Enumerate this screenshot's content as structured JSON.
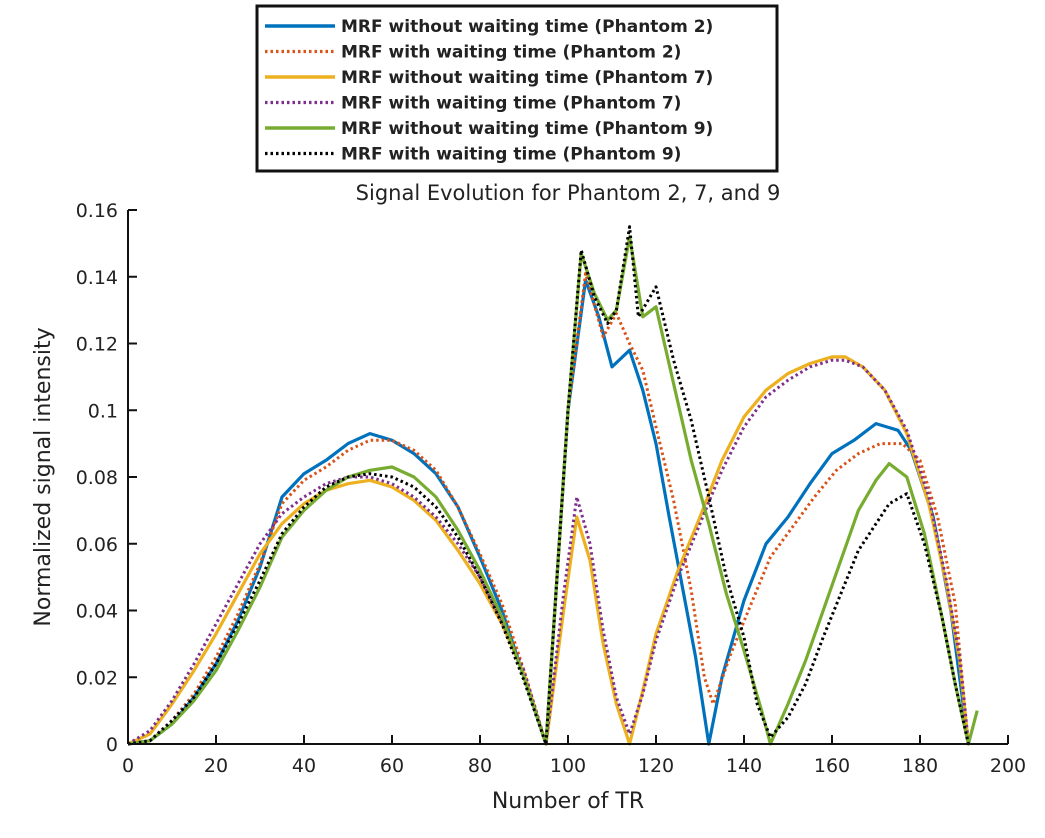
{
  "chart_data": {
    "type": "line",
    "title": "Signal Evolution for Phantom 2, 7, and 9",
    "xlabel": "Number of TR",
    "ylabel": "Normalized signal intensity",
    "xlim": [
      0,
      200
    ],
    "ylim": [
      0,
      0.16
    ],
    "xticks": [
      0,
      20,
      40,
      60,
      80,
      100,
      120,
      140,
      160,
      180,
      200
    ],
    "xtick_labels": [
      "0",
      "20",
      "40",
      "60",
      "80",
      "100",
      "120",
      "140",
      "160",
      "180",
      "200"
    ],
    "yticks": [
      0,
      0.02,
      0.04,
      0.06,
      0.08,
      0.1,
      0.12,
      0.14,
      0.16
    ],
    "ytick_labels": [
      "0",
      "0.02",
      "0.04",
      "0.06",
      "0.08",
      "0.1",
      "0.12",
      "0.14",
      "0.16"
    ],
    "grid": false,
    "legend_position": "top-center",
    "series": [
      {
        "name": "MRF without waiting time (Phantom 2)",
        "color": "#0072BD",
        "dash": "solid",
        "points": [
          [
            0,
            0
          ],
          [
            5,
            0.001
          ],
          [
            10,
            0.006
          ],
          [
            15,
            0.014
          ],
          [
            20,
            0.024
          ],
          [
            25,
            0.037
          ],
          [
            30,
            0.053
          ],
          [
            35,
            0.074
          ],
          [
            40,
            0.081
          ],
          [
            45,
            0.085
          ],
          [
            50,
            0.09
          ],
          [
            55,
            0.093
          ],
          [
            60,
            0.091
          ],
          [
            65,
            0.087
          ],
          [
            70,
            0.081
          ],
          [
            75,
            0.071
          ],
          [
            80,
            0.056
          ],
          [
            85,
            0.04
          ],
          [
            90,
            0.02
          ],
          [
            95,
            0
          ],
          [
            100,
            0.1
          ],
          [
            104,
            0.139
          ],
          [
            107,
            0.128
          ],
          [
            110,
            0.113
          ],
          [
            114,
            0.118
          ],
          [
            117,
            0.106
          ],
          [
            120,
            0.09
          ],
          [
            123,
            0.068
          ],
          [
            126,
            0.047
          ],
          [
            129,
            0.026
          ],
          [
            132,
            0
          ],
          [
            135,
            0.02
          ],
          [
            140,
            0.043
          ],
          [
            145,
            0.06
          ],
          [
            150,
            0.068
          ],
          [
            155,
            0.078
          ],
          [
            160,
            0.087
          ],
          [
            165,
            0.091
          ],
          [
            170,
            0.096
          ],
          [
            175,
            0.094
          ],
          [
            178,
            0.088
          ],
          [
            183,
            0.068
          ],
          [
            187,
            0.04
          ],
          [
            191,
            0
          ]
        ]
      },
      {
        "name": "MRF with waiting time (Phantom 2)",
        "color": "#D95319",
        "dash": "dotted",
        "points": [
          [
            0,
            0
          ],
          [
            5,
            0.001
          ],
          [
            10,
            0.007
          ],
          [
            15,
            0.015
          ],
          [
            20,
            0.026
          ],
          [
            25,
            0.039
          ],
          [
            30,
            0.054
          ],
          [
            35,
            0.072
          ],
          [
            40,
            0.079
          ],
          [
            45,
            0.083
          ],
          [
            50,
            0.088
          ],
          [
            55,
            0.091
          ],
          [
            60,
            0.091
          ],
          [
            65,
            0.088
          ],
          [
            70,
            0.082
          ],
          [
            75,
            0.071
          ],
          [
            80,
            0.057
          ],
          [
            85,
            0.042
          ],
          [
            90,
            0.022
          ],
          [
            95,
            0
          ],
          [
            100,
            0.1
          ],
          [
            104,
            0.141
          ],
          [
            108,
            0.122
          ],
          [
            111,
            0.129
          ],
          [
            114,
            0.12
          ],
          [
            117,
            0.112
          ],
          [
            120,
            0.095
          ],
          [
            124,
            0.073
          ],
          [
            128,
            0.046
          ],
          [
            131,
            0.02
          ],
          [
            133,
            0.012
          ],
          [
            137,
            0.027
          ],
          [
            141,
            0.04
          ],
          [
            146,
            0.056
          ],
          [
            151,
            0.065
          ],
          [
            156,
            0.074
          ],
          [
            161,
            0.082
          ],
          [
            166,
            0.087
          ],
          [
            171,
            0.09
          ],
          [
            176,
            0.09
          ],
          [
            180,
            0.085
          ],
          [
            184,
            0.068
          ],
          [
            188,
            0.042
          ],
          [
            191,
            0
          ]
        ]
      },
      {
        "name": "MRF without waiting time (Phantom 7)",
        "color": "#EDB120",
        "dash": "solid",
        "points": [
          [
            0,
            0
          ],
          [
            5,
            0.003
          ],
          [
            10,
            0.012
          ],
          [
            15,
            0.022
          ],
          [
            20,
            0.033
          ],
          [
            25,
            0.045
          ],
          [
            30,
            0.057
          ],
          [
            35,
            0.066
          ],
          [
            40,
            0.072
          ],
          [
            45,
            0.076
          ],
          [
            50,
            0.078
          ],
          [
            55,
            0.079
          ],
          [
            60,
            0.077
          ],
          [
            65,
            0.073
          ],
          [
            70,
            0.067
          ],
          [
            75,
            0.058
          ],
          [
            80,
            0.048
          ],
          [
            85,
            0.036
          ],
          [
            90,
            0.021
          ],
          [
            95,
            0
          ],
          [
            99,
            0.04
          ],
          [
            102,
            0.068
          ],
          [
            105,
            0.055
          ],
          [
            108,
            0.03
          ],
          [
            111,
            0.012
          ],
          [
            114,
            0
          ],
          [
            117,
            0.016
          ],
          [
            120,
            0.033
          ],
          [
            125,
            0.052
          ],
          [
            130,
            0.068
          ],
          [
            135,
            0.085
          ],
          [
            140,
            0.098
          ],
          [
            145,
            0.106
          ],
          [
            150,
            0.111
          ],
          [
            155,
            0.114
          ],
          [
            160,
            0.116
          ],
          [
            163,
            0.116
          ],
          [
            167,
            0.113
          ],
          [
            172,
            0.106
          ],
          [
            177,
            0.093
          ],
          [
            182,
            0.072
          ],
          [
            186,
            0.048
          ],
          [
            189,
            0.025
          ],
          [
            191,
            0
          ]
        ]
      },
      {
        "name": "MRF with waiting time (Phantom 7)",
        "color": "#7E2F8E",
        "dash": "dotted",
        "points": [
          [
            0,
            0
          ],
          [
            5,
            0.004
          ],
          [
            10,
            0.013
          ],
          [
            15,
            0.024
          ],
          [
            20,
            0.036
          ],
          [
            25,
            0.048
          ],
          [
            30,
            0.06
          ],
          [
            35,
            0.069
          ],
          [
            40,
            0.074
          ],
          [
            45,
            0.078
          ],
          [
            50,
            0.08
          ],
          [
            55,
            0.08
          ],
          [
            60,
            0.078
          ],
          [
            65,
            0.074
          ],
          [
            70,
            0.068
          ],
          [
            75,
            0.06
          ],
          [
            80,
            0.05
          ],
          [
            85,
            0.037
          ],
          [
            90,
            0.022
          ],
          [
            95,
            0
          ],
          [
            99,
            0.045
          ],
          [
            102,
            0.074
          ],
          [
            105,
            0.06
          ],
          [
            108,
            0.034
          ],
          [
            111,
            0.014
          ],
          [
            114,
            0.003
          ],
          [
            117,
            0.015
          ],
          [
            120,
            0.031
          ],
          [
            125,
            0.05
          ],
          [
            130,
            0.066
          ],
          [
            135,
            0.082
          ],
          [
            140,
            0.095
          ],
          [
            145,
            0.104
          ],
          [
            150,
            0.109
          ],
          [
            155,
            0.113
          ],
          [
            160,
            0.115
          ],
          [
            163,
            0.115
          ],
          [
            167,
            0.113
          ],
          [
            172,
            0.106
          ],
          [
            177,
            0.094
          ],
          [
            182,
            0.074
          ],
          [
            186,
            0.049
          ],
          [
            189,
            0.026
          ],
          [
            191,
            0
          ]
        ]
      },
      {
        "name": "MRF without waiting time (Phantom 9)",
        "color": "#77AC30",
        "dash": "solid",
        "points": [
          [
            0,
            0
          ],
          [
            5,
            0.001
          ],
          [
            10,
            0.006
          ],
          [
            15,
            0.013
          ],
          [
            20,
            0.022
          ],
          [
            25,
            0.034
          ],
          [
            30,
            0.047
          ],
          [
            35,
            0.062
          ],
          [
            40,
            0.07
          ],
          [
            45,
            0.076
          ],
          [
            50,
            0.08
          ],
          [
            55,
            0.082
          ],
          [
            60,
            0.083
          ],
          [
            65,
            0.08
          ],
          [
            70,
            0.074
          ],
          [
            75,
            0.064
          ],
          [
            80,
            0.052
          ],
          [
            85,
            0.038
          ],
          [
            90,
            0.02
          ],
          [
            95,
            0
          ],
          [
            100,
            0.1
          ],
          [
            103,
            0.147
          ],
          [
            106,
            0.135
          ],
          [
            109,
            0.127
          ],
          [
            111,
            0.13
          ],
          [
            114,
            0.152
          ],
          [
            117,
            0.128
          ],
          [
            120,
            0.131
          ],
          [
            124,
            0.108
          ],
          [
            128,
            0.085
          ],
          [
            132,
            0.066
          ],
          [
            136,
            0.045
          ],
          [
            140,
            0.028
          ],
          [
            144,
            0.01
          ],
          [
            146,
            0
          ],
          [
            150,
            0.012
          ],
          [
            154,
            0.025
          ],
          [
            158,
            0.04
          ],
          [
            162,
            0.055
          ],
          [
            166,
            0.07
          ],
          [
            170,
            0.079
          ],
          [
            173,
            0.084
          ],
          [
            177,
            0.08
          ],
          [
            181,
            0.063
          ],
          [
            185,
            0.038
          ],
          [
            188,
            0.018
          ],
          [
            191,
            0
          ],
          [
            193,
            0.01
          ]
        ]
      },
      {
        "name": "MRF with waiting time (Phantom 9)",
        "color": "#000000",
        "dash": "dotted",
        "points": [
          [
            0,
            0
          ],
          [
            5,
            0.001
          ],
          [
            10,
            0.007
          ],
          [
            15,
            0.014
          ],
          [
            20,
            0.024
          ],
          [
            25,
            0.036
          ],
          [
            30,
            0.049
          ],
          [
            35,
            0.063
          ],
          [
            40,
            0.071
          ],
          [
            45,
            0.077
          ],
          [
            50,
            0.08
          ],
          [
            55,
            0.081
          ],
          [
            60,
            0.08
          ],
          [
            65,
            0.077
          ],
          [
            70,
            0.071
          ],
          [
            75,
            0.062
          ],
          [
            80,
            0.05
          ],
          [
            85,
            0.036
          ],
          [
            90,
            0.019
          ],
          [
            95,
            0
          ],
          [
            100,
            0.1
          ],
          [
            103,
            0.148
          ],
          [
            106,
            0.134
          ],
          [
            109,
            0.126
          ],
          [
            111,
            0.13
          ],
          [
            114,
            0.155
          ],
          [
            116,
            0.128
          ],
          [
            120,
            0.137
          ],
          [
            124,
            0.115
          ],
          [
            128,
            0.097
          ],
          [
            132,
            0.074
          ],
          [
            136,
            0.05
          ],
          [
            140,
            0.032
          ],
          [
            143,
            0.012
          ],
          [
            146,
            0.002
          ],
          [
            150,
            0.008
          ],
          [
            154,
            0.018
          ],
          [
            158,
            0.032
          ],
          [
            162,
            0.045
          ],
          [
            166,
            0.058
          ],
          [
            170,
            0.066
          ],
          [
            173,
            0.072
          ],
          [
            177,
            0.075
          ],
          [
            181,
            0.06
          ],
          [
            185,
            0.038
          ],
          [
            188,
            0.018
          ],
          [
            191,
            0
          ]
        ]
      }
    ]
  }
}
